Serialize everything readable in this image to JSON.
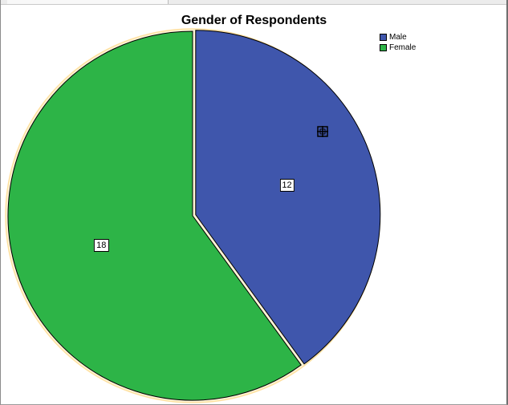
{
  "chart_data": {
    "type": "pie",
    "title": "Gender of Respondents",
    "categories": [
      "Male",
      "Female"
    ],
    "values": [
      12,
      18
    ],
    "colors": [
      "#3f56ac",
      "#2db447"
    ],
    "legend_position": "top-right",
    "data_labels": [
      "12",
      "18"
    ]
  },
  "cursor_icon": "crosshair-move-icon"
}
